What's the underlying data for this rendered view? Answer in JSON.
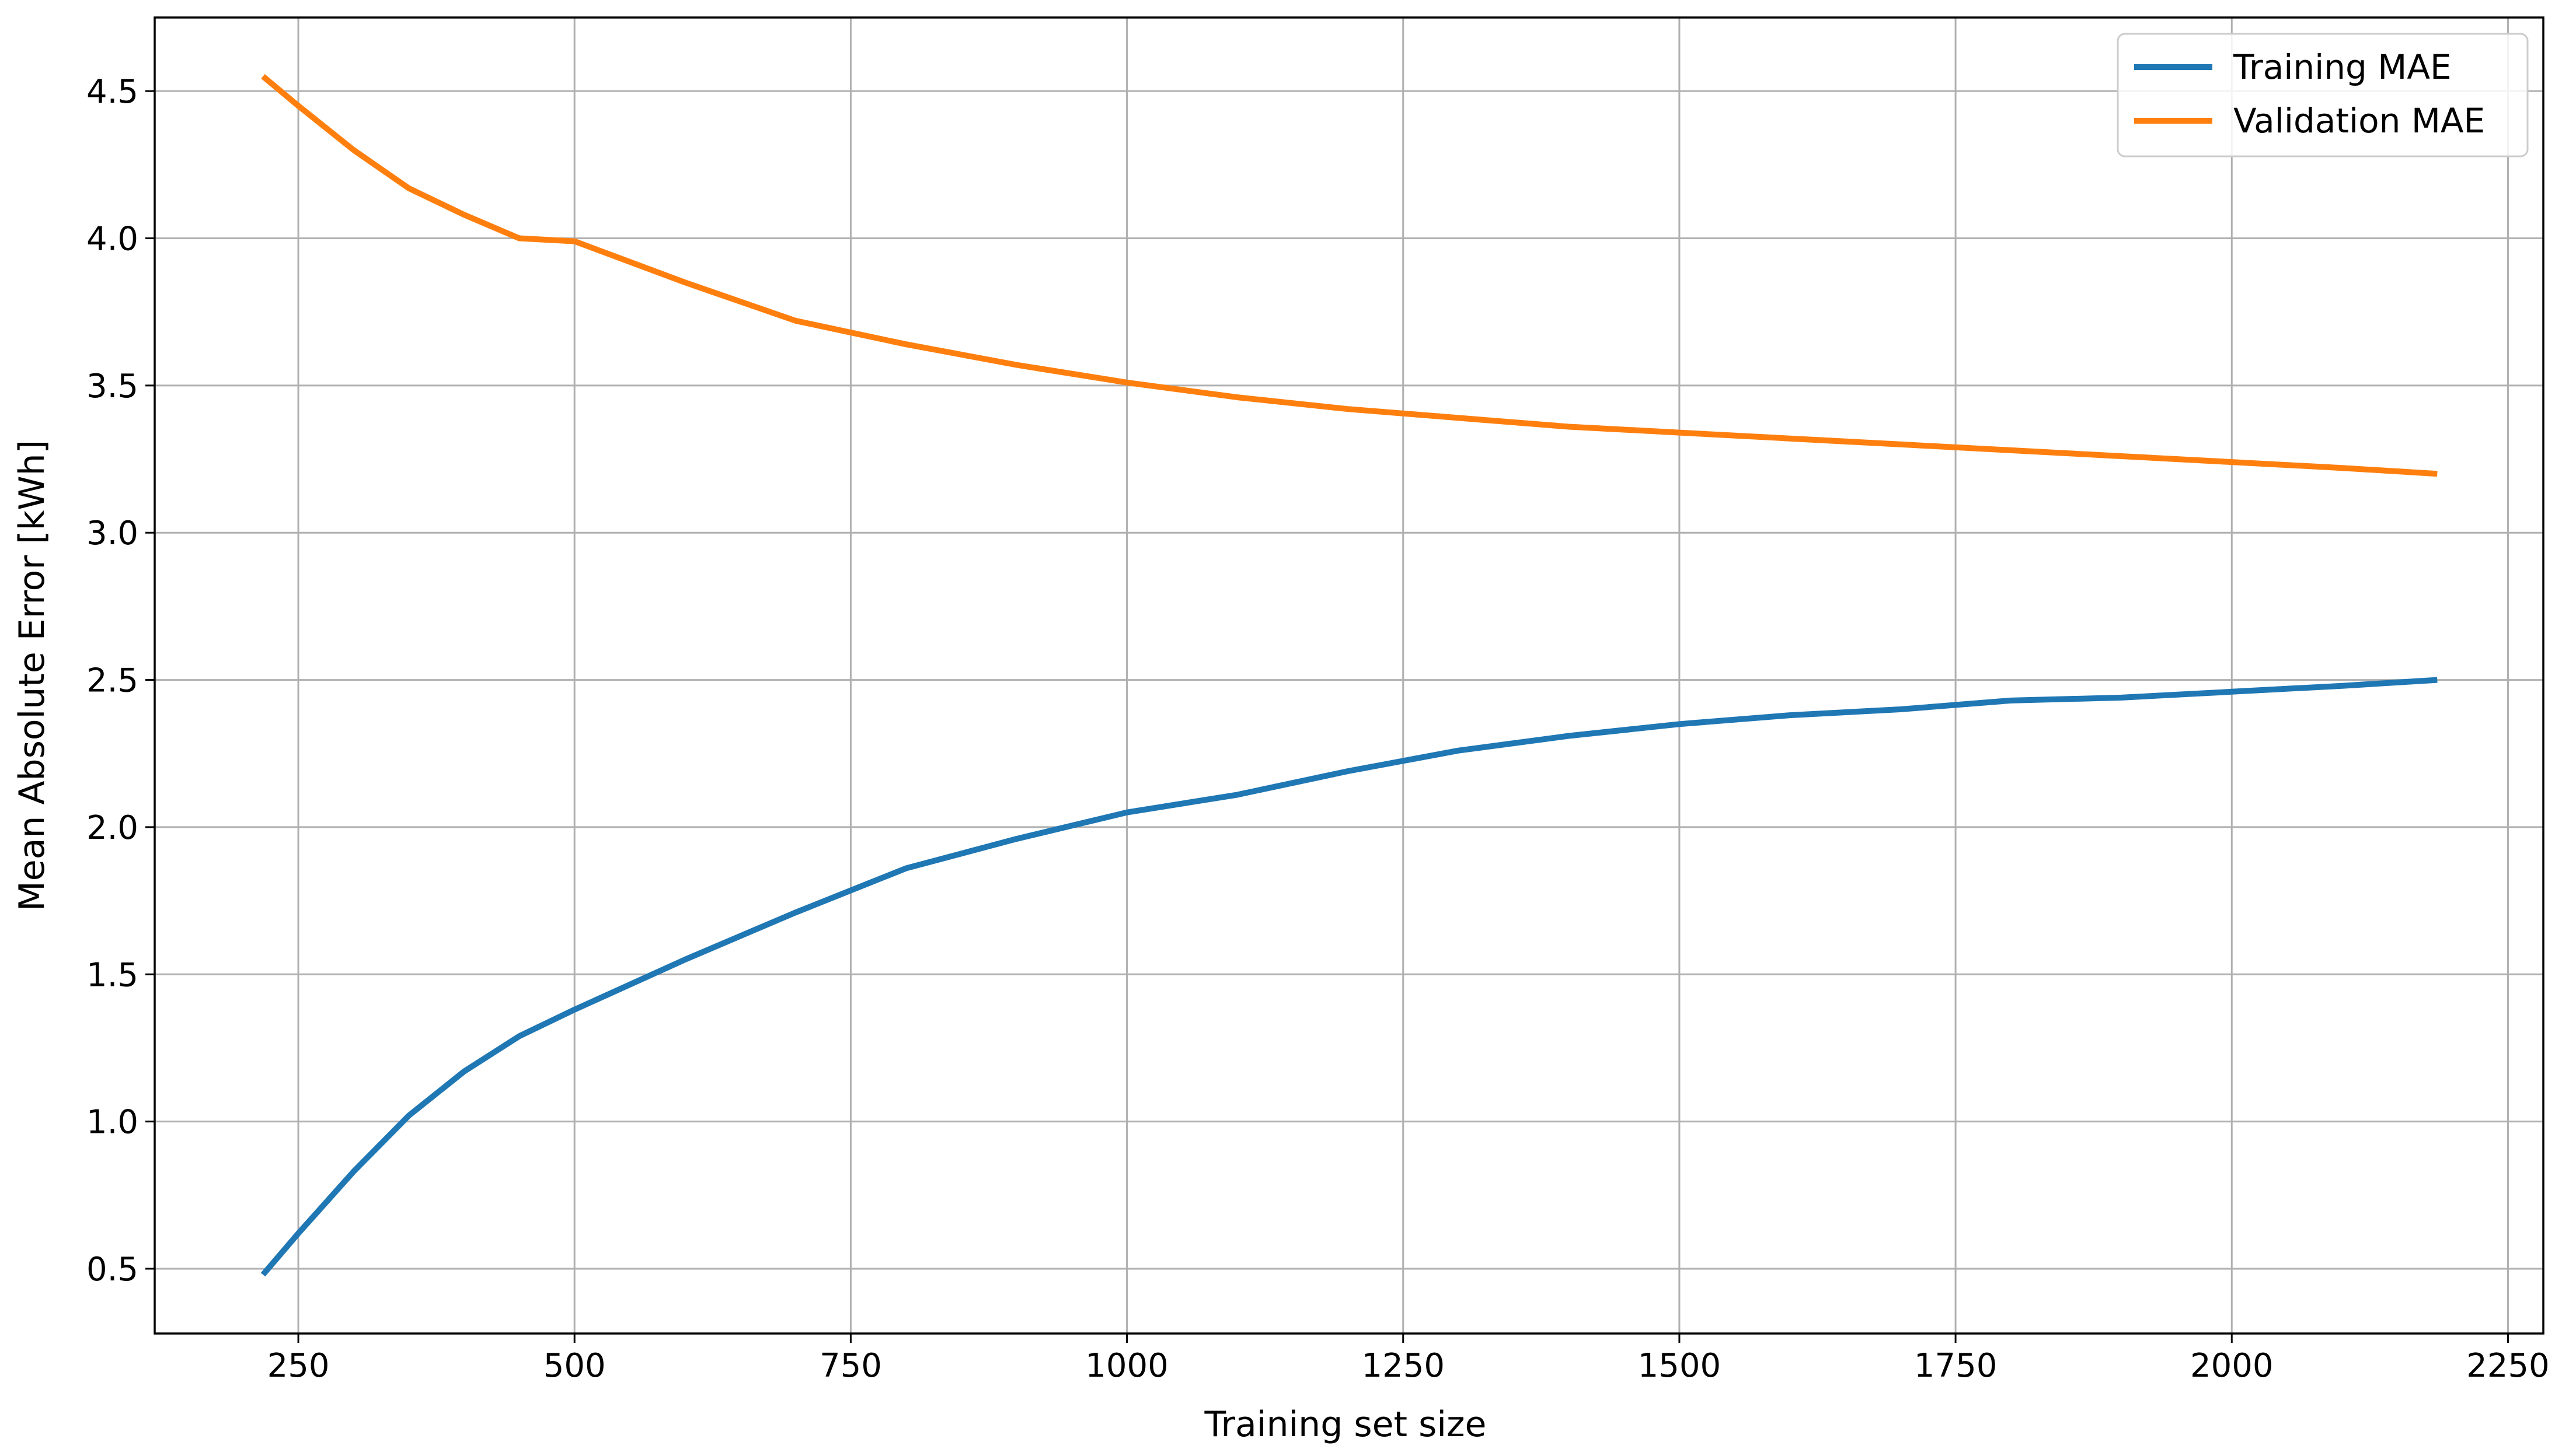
{
  "chart_data": {
    "type": "line",
    "title": "",
    "xlabel": "Training set size",
    "ylabel": "Mean Absolute Error [kWh]",
    "xlim": [
      120,
      2282
    ],
    "ylim": [
      0.28,
      4.75
    ],
    "xticks": [
      250,
      500,
      750,
      1000,
      1250,
      1500,
      1750,
      2000,
      2250
    ],
    "yticks": [
      0.5,
      1.0,
      1.5,
      2.0,
      2.5,
      3.0,
      3.5,
      4.0,
      4.5
    ],
    "xtick_labels": [
      "250",
      "500",
      "750",
      "1000",
      "1250",
      "1500",
      "1750",
      "2000",
      "2250"
    ],
    "ytick_labels": [
      "0.5",
      "1.0",
      "1.5",
      "2.0",
      "2.5",
      "3.0",
      "3.5",
      "4.0",
      "4.5"
    ],
    "grid": true,
    "legend_position": "top-right",
    "x": [
      218,
      250,
      300,
      350,
      400,
      450,
      500,
      600,
      700,
      800,
      900,
      1000,
      1100,
      1200,
      1300,
      1400,
      1500,
      1600,
      1700,
      1800,
      1900,
      2000,
      2100,
      2186
    ],
    "series": [
      {
        "name": "Training MAE",
        "color": "#1f77b4",
        "values": [
          0.48,
          0.62,
          0.83,
          1.02,
          1.17,
          1.29,
          1.38,
          1.55,
          1.71,
          1.86,
          1.96,
          2.05,
          2.11,
          2.19,
          2.26,
          2.31,
          2.35,
          2.38,
          2.4,
          2.43,
          2.44,
          2.46,
          2.48,
          2.5
        ]
      },
      {
        "name": "Validation MAE",
        "color": "#ff7f0e",
        "values": [
          4.55,
          4.45,
          4.3,
          4.17,
          4.08,
          4.0,
          3.99,
          3.85,
          3.72,
          3.64,
          3.57,
          3.51,
          3.46,
          3.42,
          3.39,
          3.36,
          3.34,
          3.32,
          3.3,
          3.28,
          3.26,
          3.24,
          3.22,
          3.2
        ]
      }
    ]
  }
}
